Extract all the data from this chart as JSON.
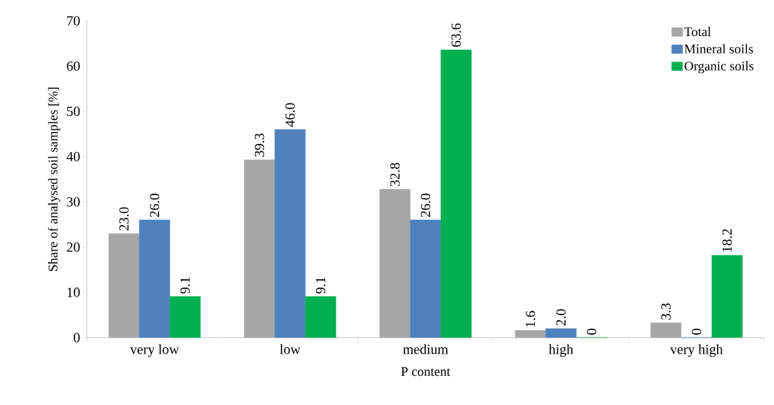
{
  "chart_data": {
    "type": "bar",
    "xlabel": "P  content",
    "ylabel": "Share of analysed soil samples [%]",
    "categories": [
      "very low",
      "low",
      "medium",
      "high",
      "very high"
    ],
    "series": [
      {
        "name": "Total",
        "color": "#a6a6a6",
        "values": [
          23.0,
          39.3,
          32.8,
          1.6,
          3.3
        ],
        "value_labels": [
          "23.0",
          "39.3",
          "32.8",
          "1.6",
          "3.3"
        ]
      },
      {
        "name": "Mineral soils",
        "color": "#4f81bd",
        "values": [
          26.0,
          46.0,
          26.0,
          2.0,
          0
        ],
        "value_labels": [
          "26.0",
          "46.0",
          "26.0",
          "2.0",
          "0"
        ]
      },
      {
        "name": "Organic soils",
        "color": "#00b050",
        "values": [
          9.1,
          9.1,
          63.6,
          0,
          18.2
        ],
        "value_labels": [
          "9.1",
          "9.1",
          "63.6",
          "0",
          "18.2"
        ]
      }
    ],
    "ylim": [
      0,
      70
    ],
    "yticks": [
      0,
      10,
      20,
      30,
      40,
      50,
      60,
      70
    ],
    "grid": false,
    "legend": "top right"
  }
}
